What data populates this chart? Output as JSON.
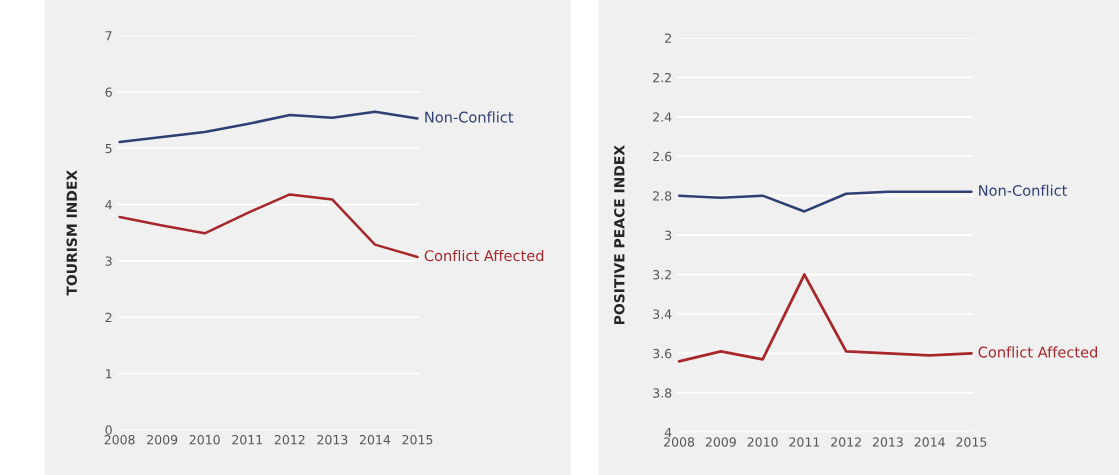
{
  "chart_data": [
    {
      "type": "line",
      "ylabel": "TOURISM INDEX",
      "categories": [
        "2008",
        "2009",
        "2010",
        "2011",
        "2012",
        "2013",
        "2014",
        "2015"
      ],
      "ylim": [
        0,
        7
      ],
      "yticks": [
        0,
        1,
        2,
        3,
        4,
        5,
        6,
        7
      ],
      "grid": "y",
      "legend": false,
      "series": [
        {
          "name": "Non-Conflict",
          "color": "#2e3f73",
          "values": [
            5.11,
            5.2,
            5.29,
            5.43,
            5.59,
            5.54,
            5.65,
            5.53
          ]
        },
        {
          "name": "Conflict Affected",
          "color": "#a8272a",
          "values": [
            3.78,
            3.63,
            3.49,
            3.85,
            4.18,
            4.09,
            3.29,
            3.07
          ]
        }
      ]
    },
    {
      "type": "line",
      "ylabel": "POSITIVE PEACE INDEX",
      "categories": [
        "2008",
        "2009",
        "2010",
        "2011",
        "2012",
        "2013",
        "2014",
        "2015"
      ],
      "ylim": [
        4,
        2
      ],
      "yticks": [
        2,
        2.2,
        2.4,
        2.6,
        2.8,
        3,
        3.2,
        3.4,
        3.6,
        3.8,
        4
      ],
      "grid": "y",
      "legend": false,
      "series": [
        {
          "name": "Non-Conflict",
          "color": "#2e3f73",
          "values": [
            2.8,
            2.81,
            2.8,
            2.88,
            2.79,
            2.78,
            2.78,
            2.78
          ]
        },
        {
          "name": "Conflict Affected",
          "color": "#a8272a",
          "values": [
            3.64,
            3.59,
            3.63,
            3.2,
            3.59,
            3.6,
            3.61,
            3.6
          ]
        }
      ]
    }
  ]
}
